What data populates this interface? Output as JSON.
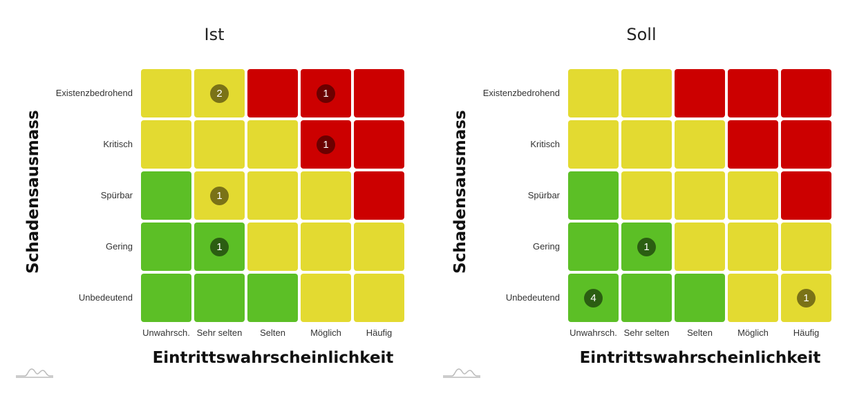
{
  "colors": {
    "green": "#5cbf26",
    "yellow": "#e3da31",
    "red": "#cc0000",
    "badge_green": "#2b5e12",
    "badge_yellow": "#7a7217",
    "badge_red": "#6b0000",
    "logo": "#bbbbbb"
  },
  "logo_icon": "mountain-logo-icon",
  "chart_data": [
    {
      "type": "heatmap",
      "title": "Ist",
      "xlabel": "Eintrittswahrscheinlichkeit",
      "ylabel": "Schadensausmass",
      "x_categories": [
        "Unwahrsch.",
        "Sehr selten",
        "Selten",
        "Möglich",
        "Häufig"
      ],
      "y_categories": [
        "Existenzbedrohend",
        "Kritisch",
        "Spürbar",
        "Gering",
        "Unbedeutend"
      ],
      "cell_levels": [
        [
          "yellow",
          "yellow",
          "red",
          "red",
          "red"
        ],
        [
          "yellow",
          "yellow",
          "yellow",
          "red",
          "red"
        ],
        [
          "green",
          "yellow",
          "yellow",
          "yellow",
          "red"
        ],
        [
          "green",
          "green",
          "yellow",
          "yellow",
          "yellow"
        ],
        [
          "green",
          "green",
          "green",
          "yellow",
          "yellow"
        ]
      ],
      "counts": [
        [
          null,
          "2",
          null,
          "1",
          null
        ],
        [
          null,
          null,
          null,
          "1",
          null
        ],
        [
          null,
          "1",
          null,
          null,
          null
        ],
        [
          null,
          "1",
          null,
          null,
          null
        ],
        [
          null,
          null,
          null,
          null,
          null
        ]
      ]
    },
    {
      "type": "heatmap",
      "title": "Soll",
      "xlabel": "Eintrittswahrscheinlichkeit",
      "ylabel": "Schadensausmass",
      "x_categories": [
        "Unwahrsch.",
        "Sehr selten",
        "Selten",
        "Möglich",
        "Häufig"
      ],
      "y_categories": [
        "Existenzbedrohend",
        "Kritisch",
        "Spürbar",
        "Gering",
        "Unbedeutend"
      ],
      "cell_levels": [
        [
          "yellow",
          "yellow",
          "red",
          "red",
          "red"
        ],
        [
          "yellow",
          "yellow",
          "yellow",
          "red",
          "red"
        ],
        [
          "green",
          "yellow",
          "yellow",
          "yellow",
          "red"
        ],
        [
          "green",
          "green",
          "yellow",
          "yellow",
          "yellow"
        ],
        [
          "green",
          "green",
          "green",
          "yellow",
          "yellow"
        ]
      ],
      "counts": [
        [
          null,
          null,
          null,
          null,
          null
        ],
        [
          null,
          null,
          null,
          null,
          null
        ],
        [
          null,
          null,
          null,
          null,
          null
        ],
        [
          null,
          "1",
          null,
          null,
          null
        ],
        [
          "4",
          null,
          null,
          null,
          "1"
        ]
      ]
    }
  ]
}
